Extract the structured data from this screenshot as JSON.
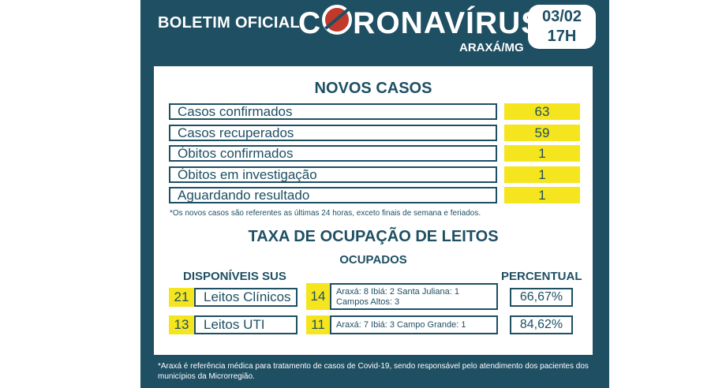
{
  "header": {
    "left_title": "BOLETIM OFICIAL",
    "brand_pre": "C",
    "brand_post": "RONAVÍRUS",
    "city": "ARAXÁ/MG",
    "date": "03/02",
    "time": "17H"
  },
  "novos_casos": {
    "title": "NOVOS CASOS",
    "rows": [
      {
        "label": "Casos confirmados",
        "value": "63"
      },
      {
        "label": "Casos recuperados",
        "value": "59"
      },
      {
        "label": "Óbitos confirmados",
        "value": "1"
      },
      {
        "label": "Óbitos em investigação",
        "value": "1"
      },
      {
        "label": "Aguardando resultado",
        "value": "1"
      }
    ],
    "note": "*Os novos casos são referentes as últimas 24 horas, exceto finais de semana e feriados."
  },
  "leitos": {
    "title": "TAXA DE OCUPAÇÃO DE LEITOS",
    "ocupados_header": "OCUPADOS",
    "disponiveis_header": "DISPONÍVEIS SUS",
    "percentual_header": "PERCENTUAL",
    "rows": [
      {
        "disponiveis": "21",
        "label": "Leitos Clínicos",
        "ocupados": "14",
        "detail": "Araxá: 8  Ibiá: 2  Santa Juliana: 1\nCampos Altos: 3",
        "percent": "66,67%"
      },
      {
        "disponiveis": "13",
        "label": "Leitos UTI",
        "ocupados": "11",
        "detail": "Araxá: 7  Ibiá: 3 Campo Grande: 1",
        "percent": "84,62%"
      }
    ]
  },
  "footer": "*Araxá é referência médica para tratamento de casos de Covid-19, sendo responsável pelo atendimento dos pacientes dos municípios da Microrregião.",
  "colors": {
    "navy": "#1e4f63",
    "yellow": "#f4e51e",
    "virus": "#c0392b"
  }
}
